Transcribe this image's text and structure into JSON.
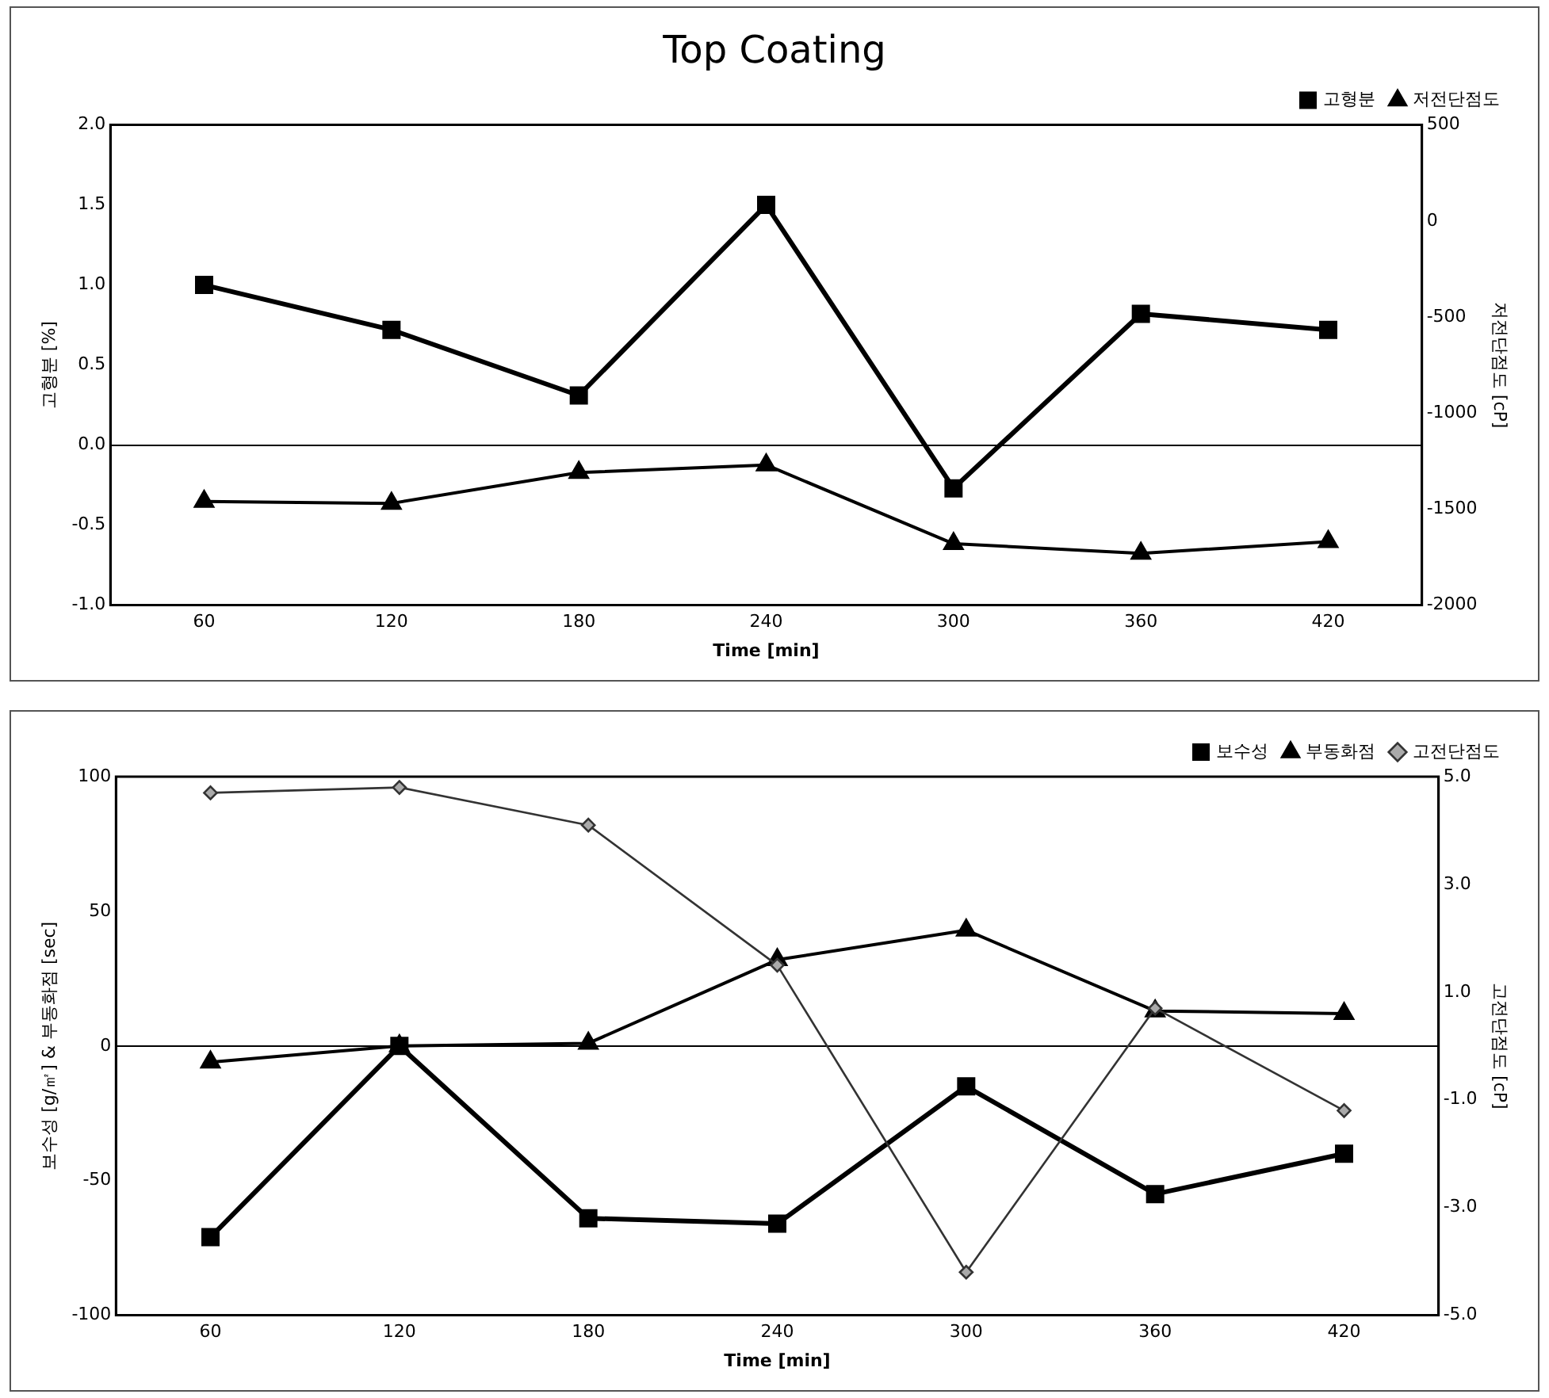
{
  "chart_data": [
    {
      "type": "line",
      "title": "Top Coating",
      "xlabel": "Time [min]",
      "ylabel": "고형분 [%]",
      "y2label": "저전단점도 [cP]",
      "legend": "top right",
      "categories": [
        "60",
        "120",
        "180",
        "240",
        "300",
        "360",
        "420"
      ],
      "series": [
        {
          "name": "고형분",
          "color": "#000000",
          "marker": "square",
          "values": [
            1.0,
            0.72,
            0.31,
            1.5,
            -0.27,
            0.82,
            0.72
          ]
        },
        {
          "name": "저전단점도",
          "color": "#000000",
          "marker": "triangle",
          "axis": "y2",
          "values": [
            -1460,
            -1470,
            -1310,
            -1270,
            -1680,
            -1730,
            -1670
          ]
        }
      ],
      "ylim": [
        -1,
        2
      ],
      "yticks": [
        {
          "value": -1,
          "label": "-1.0"
        },
        {
          "value": -0.5,
          "label": "-0.5"
        },
        {
          "value": 0,
          "label": "0.0"
        },
        {
          "value": 0.5,
          "label": "0.5"
        },
        {
          "value": 1,
          "label": "1.0"
        },
        {
          "value": 1.5,
          "label": "1.5"
        },
        {
          "value": 2,
          "label": "2.0"
        }
      ],
      "y2lim": [
        -2000,
        500
      ],
      "y2ticks": [
        -2000,
        -1500,
        -1000,
        -500,
        0,
        500
      ]
    },
    {
      "type": "line",
      "xlabel": "Time [min]",
      "ylabel": "보수성 [g/㎡] & 부동화점 [sec]",
      "y2label": "고전단점도 [cP]",
      "legend": "top right",
      "categories": [
        "60",
        "120",
        "180",
        "240",
        "300",
        "360",
        "420"
      ],
      "series": [
        {
          "name": "보수성",
          "color": "#000000",
          "marker": "square",
          "values": [
            -71,
            0,
            -64,
            -66,
            -15,
            -55,
            -40
          ]
        },
        {
          "name": "부동화점",
          "color": "#000000",
          "marker": "triangle",
          "values": [
            -6,
            0,
            1,
            32,
            43,
            13,
            12
          ]
        },
        {
          "name": "고전단점도",
          "color": "#333333",
          "marker": "diamond",
          "axis": "y2",
          "values": [
            4.7,
            4.8,
            4.1,
            1.5,
            -4.2,
            0.7,
            -1.2
          ]
        }
      ],
      "ylim": [
        -100,
        100
      ],
      "yticks": [
        -100,
        -50,
        0,
        50,
        100
      ],
      "y2lim": [
        -5,
        5
      ],
      "y2ticks": [
        {
          "value": -5,
          "label": "-5.0"
        },
        {
          "value": -3,
          "label": "-3.0"
        },
        {
          "value": -1,
          "label": "-1.0"
        },
        {
          "value": 1,
          "label": "1.0"
        },
        {
          "value": 3,
          "label": "3.0"
        },
        {
          "value": 5,
          "label": "5.0"
        }
      ]
    }
  ]
}
